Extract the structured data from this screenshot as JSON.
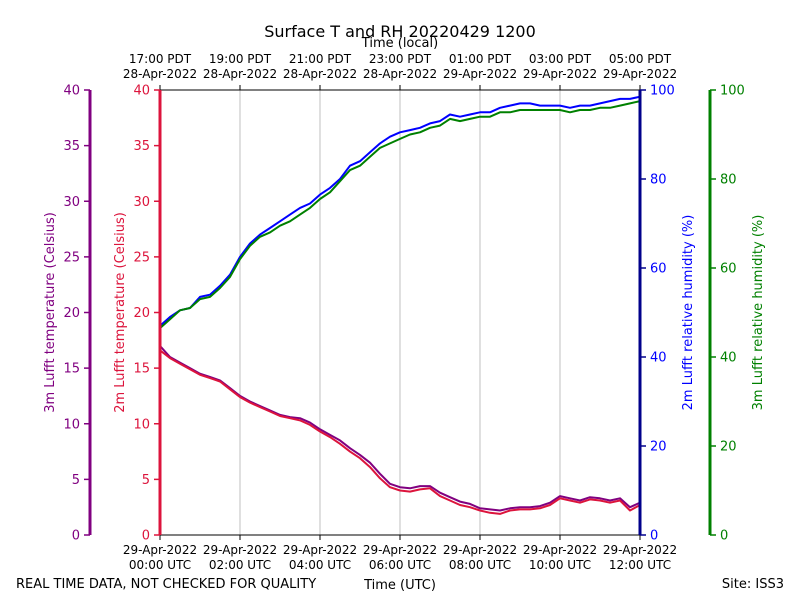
{
  "chart_data": {
    "type": "line",
    "title": "Surface T and RH 20220429 1200",
    "footer_left": "REAL TIME DATA, NOT CHECKED FOR QUALITY",
    "footer_right": "Site: ISS3",
    "x_bottom": {
      "label": "Time (UTC)",
      "range_hours_utc": [
        0,
        12
      ],
      "ticks": [
        {
          "hour": 0,
          "date": "29-Apr-2022",
          "time": "00:00 UTC"
        },
        {
          "hour": 2,
          "date": "29-Apr-2022",
          "time": "02:00 UTC"
        },
        {
          "hour": 4,
          "date": "29-Apr-2022",
          "time": "04:00 UTC"
        },
        {
          "hour": 6,
          "date": "29-Apr-2022",
          "time": "06:00 UTC"
        },
        {
          "hour": 8,
          "date": "29-Apr-2022",
          "time": "08:00 UTC"
        },
        {
          "hour": 10,
          "date": "29-Apr-2022",
          "time": "10:00 UTC"
        },
        {
          "hour": 12,
          "date": "29-Apr-2022",
          "time": "12:00 UTC"
        }
      ]
    },
    "x_top": {
      "label": "Time (local)",
      "ticks": [
        {
          "hour": 0,
          "time": "17:00 PDT",
          "date": "28-Apr-2022"
        },
        {
          "hour": 2,
          "time": "19:00 PDT",
          "date": "28-Apr-2022"
        },
        {
          "hour": 4,
          "time": "21:00 PDT",
          "date": "28-Apr-2022"
        },
        {
          "hour": 6,
          "time": "23:00 PDT",
          "date": "28-Apr-2022"
        },
        {
          "hour": 8,
          "time": "01:00 PDT",
          "date": "29-Apr-2022"
        },
        {
          "hour": 10,
          "time": "03:00 PDT",
          "date": "29-Apr-2022"
        },
        {
          "hour": 12,
          "time": "05:00 PDT",
          "date": "29-Apr-2022"
        }
      ]
    },
    "y_axes": [
      {
        "id": "t3m",
        "label": "3m Lufft temperature (Celsius)",
        "range": [
          0,
          40
        ],
        "ticks": [
          0,
          5,
          10,
          15,
          20,
          25,
          30,
          35,
          40
        ],
        "color": "#800080"
      },
      {
        "id": "t2m",
        "label": "2m Lufft temperature (Celsius)",
        "range": [
          0,
          40
        ],
        "ticks": [
          0,
          5,
          10,
          15,
          20,
          25,
          30,
          35,
          40
        ],
        "color": "#dc143c"
      },
      {
        "id": "rh2m",
        "label": "2m Lufft relative humidity (%)",
        "range": [
          0,
          100
        ],
        "ticks": [
          0,
          20,
          40,
          60,
          80,
          100
        ],
        "color": "#0000ff",
        "spine_color": "#00008b"
      },
      {
        "id": "rh3m",
        "label": "3m Lufft relative humidity (%)",
        "range": [
          0,
          100
        ],
        "ticks": [
          0,
          20,
          40,
          60,
          80,
          100
        ],
        "color": "#008000"
      }
    ],
    "grid": "vertical at major x ticks",
    "x_unit": "hours since 29-Apr-2022 00:00 UTC",
    "series": [
      {
        "name": "2m Lufft relative humidity (%)",
        "axis": "rh2m",
        "color": "#0000ff",
        "x": [
          0,
          0.25,
          0.5,
          0.75,
          1,
          1.25,
          1.5,
          1.75,
          2,
          2.25,
          2.5,
          2.75,
          3,
          3.25,
          3.5,
          3.75,
          4,
          4.25,
          4.5,
          4.75,
          5,
          5.25,
          5.5,
          5.75,
          6,
          6.25,
          6.5,
          6.75,
          7,
          7.25,
          7.5,
          7.75,
          8,
          8.25,
          8.5,
          8.75,
          9,
          9.25,
          9.5,
          9.75,
          10,
          10.25,
          10.5,
          10.75,
          11,
          11.25,
          11.5,
          11.75,
          12
        ],
        "values": [
          47,
          49,
          50.5,
          51,
          53.5,
          54,
          56,
          58.5,
          62.5,
          65.5,
          67.5,
          69,
          70.5,
          72,
          73.5,
          74.5,
          76.5,
          78,
          80,
          83,
          84,
          86,
          88,
          89.5,
          90.5,
          91,
          91.5,
          92.5,
          93,
          94.5,
          94,
          94.5,
          95,
          95,
          96,
          96.5,
          97,
          97,
          96.5,
          96.5,
          96.5,
          96,
          96.5,
          96.5,
          97,
          97.5,
          98,
          98,
          98.5
        ]
      },
      {
        "name": "3m Lufft relative humidity (%)",
        "axis": "rh3m",
        "color": "#008000",
        "x": [
          0,
          0.25,
          0.5,
          0.75,
          1,
          1.25,
          1.5,
          1.75,
          2,
          2.25,
          2.5,
          2.75,
          3,
          3.25,
          3.5,
          3.75,
          4,
          4.25,
          4.5,
          4.75,
          5,
          5.25,
          5.5,
          5.75,
          6,
          6.25,
          6.5,
          6.75,
          7,
          7.25,
          7.5,
          7.75,
          8,
          8.25,
          8.5,
          8.75,
          9,
          9.25,
          9.5,
          9.75,
          10,
          10.25,
          10.5,
          10.75,
          11,
          11.25,
          11.5,
          11.75,
          12
        ],
        "values": [
          46.5,
          48.5,
          50.5,
          51,
          53,
          53.5,
          55.5,
          58,
          62,
          65,
          67,
          68,
          69.5,
          70.5,
          72,
          73.5,
          75.5,
          77,
          79.5,
          82,
          83,
          85,
          87,
          88,
          89,
          90,
          90.5,
          91.5,
          92,
          93.5,
          93,
          93.5,
          94,
          94,
          95,
          95,
          95.5,
          95.5,
          95.5,
          95.5,
          95.5,
          95,
          95.5,
          95.5,
          96,
          96,
          96.5,
          97,
          97.5
        ]
      },
      {
        "name": "3m Lufft temperature (Celsius)",
        "axis": "t3m",
        "color": "#800080",
        "x": [
          0,
          0.25,
          0.5,
          0.75,
          1,
          1.25,
          1.5,
          1.75,
          2,
          2.25,
          2.5,
          2.75,
          3,
          3.25,
          3.5,
          3.75,
          4,
          4.25,
          4.5,
          4.75,
          5,
          5.25,
          5.5,
          5.75,
          6,
          6.25,
          6.5,
          6.75,
          7,
          7.25,
          7.5,
          7.75,
          8,
          8.25,
          8.5,
          8.75,
          9,
          9.25,
          9.5,
          9.75,
          10,
          10.25,
          10.5,
          10.75,
          11,
          11.25,
          11.5,
          11.75,
          12
        ],
        "values": [
          17,
          16,
          15.5,
          15,
          14.5,
          14.2,
          13.9,
          13.2,
          12.5,
          12,
          11.6,
          11.2,
          10.8,
          10.6,
          10.5,
          10.1,
          9.5,
          9,
          8.5,
          7.8,
          7.2,
          6.5,
          5.5,
          4.6,
          4.3,
          4.2,
          4.4,
          4.4,
          3.8,
          3.4,
          3,
          2.8,
          2.4,
          2.3,
          2.2,
          2.4,
          2.5,
          2.5,
          2.6,
          2.9,
          3.5,
          3.3,
          3.1,
          3.4,
          3.3,
          3.1,
          3.3,
          2.5,
          2.9
        ]
      },
      {
        "name": "2m Lufft temperature (Celsius)",
        "axis": "t2m",
        "color": "#dc143c",
        "x": [
          0,
          0.25,
          0.5,
          0.75,
          1,
          1.25,
          1.5,
          1.75,
          2,
          2.25,
          2.5,
          2.75,
          3,
          3.25,
          3.5,
          3.75,
          4,
          4.25,
          4.5,
          4.75,
          5,
          5.25,
          5.5,
          5.75,
          6,
          6.25,
          6.5,
          6.75,
          7,
          7.25,
          7.5,
          7.75,
          8,
          8.25,
          8.5,
          8.75,
          9,
          9.25,
          9.5,
          9.75,
          10,
          10.25,
          10.5,
          10.75,
          11,
          11.25,
          11.5,
          11.75,
          12
        ],
        "values": [
          16.6,
          15.9,
          15.4,
          14.9,
          14.4,
          14.1,
          13.8,
          13.1,
          12.4,
          11.9,
          11.5,
          11.1,
          10.7,
          10.5,
          10.3,
          9.9,
          9.3,
          8.8,
          8.2,
          7.5,
          6.9,
          6.1,
          5.1,
          4.3,
          4.0,
          3.9,
          4.1,
          4.2,
          3.5,
          3.1,
          2.7,
          2.5,
          2.2,
          2.0,
          1.9,
          2.2,
          2.3,
          2.3,
          2.4,
          2.7,
          3.3,
          3.1,
          2.9,
          3.2,
          3.1,
          2.9,
          3.1,
          2.2,
          2.7
        ]
      }
    ]
  }
}
